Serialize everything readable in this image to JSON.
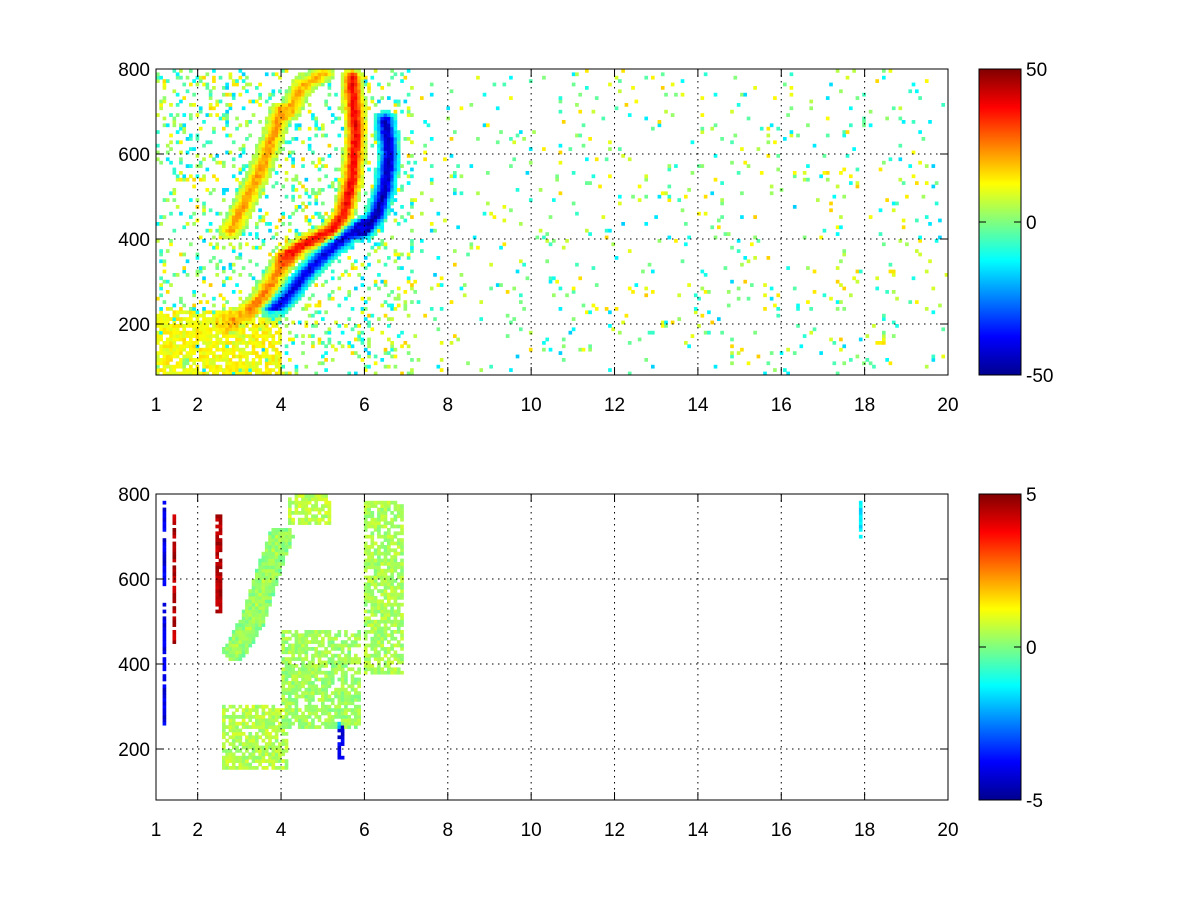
{
  "figure": {
    "background": "#ffffff"
  },
  "chart_data": [
    {
      "type": "heatmap",
      "title": "",
      "xlabel": "",
      "ylabel": "",
      "xlim": [
        1,
        20
      ],
      "ylim": [
        80,
        800
      ],
      "x_ticks": [
        "1",
        "2",
        "4",
        "6",
        "8",
        "10",
        "12",
        "14",
        "16",
        "18",
        "20"
      ],
      "x_tick_values": [
        1,
        2,
        4,
        6,
        8,
        10,
        12,
        14,
        16,
        18,
        20
      ],
      "y_ticks": [
        "200",
        "400",
        "600",
        "800"
      ],
      "y_tick_values": [
        200,
        400,
        600,
        800
      ],
      "grid": true,
      "colormap": "jet",
      "colorbar": {
        "range": [
          -50,
          50
        ],
        "ticks": [
          "50",
          "0",
          "-50"
        ],
        "tick_values": [
          50,
          0,
          -50
        ]
      },
      "features": [
        {
          "kind": "ridge",
          "value": 25,
          "points": [
            [
              2.7,
              200
            ],
            [
              3.2,
              230
            ],
            [
              3.6,
              270
            ],
            [
              3.9,
              320
            ],
            [
              4.1,
              355
            ]
          ]
        },
        {
          "kind": "ridge",
          "value": 38,
          "points": [
            [
              4.1,
              355
            ],
            [
              4.4,
              380
            ],
            [
              4.8,
              400
            ],
            [
              5.2,
              420
            ],
            [
              5.5,
              460
            ],
            [
              5.7,
              540
            ],
            [
              5.8,
              650
            ],
            [
              5.7,
              780
            ]
          ]
        },
        {
          "kind": "ridge",
          "value": 22,
          "points": [
            [
              2.8,
              420
            ],
            [
              3.1,
              480
            ],
            [
              3.4,
              540
            ],
            [
              3.7,
              610
            ],
            [
              4.0,
              700
            ]
          ]
        },
        {
          "kind": "ridge",
          "value": 20,
          "points": [
            [
              4.2,
              700
            ],
            [
              4.5,
              760
            ],
            [
              5.0,
              790
            ]
          ]
        },
        {
          "kind": "trough",
          "value": -40,
          "points": [
            [
              3.8,
              230
            ],
            [
              4.2,
              270
            ],
            [
              4.6,
              320
            ],
            [
              5.0,
              360
            ],
            [
              5.5,
              400
            ],
            [
              5.9,
              430
            ]
          ]
        },
        {
          "kind": "trough",
          "value": -45,
          "points": [
            [
              6.0,
              420
            ],
            [
              6.3,
              460
            ],
            [
              6.5,
              520
            ],
            [
              6.6,
              600
            ],
            [
              6.5,
              680
            ]
          ]
        },
        {
          "kind": "band",
          "value": 12,
          "x0": 1.0,
          "x1": 4.0,
          "y0": 80,
          "y1": 230
        }
      ]
    },
    {
      "type": "heatmap",
      "title": "",
      "xlabel": "",
      "ylabel": "",
      "xlim": [
        1,
        20
      ],
      "ylim": [
        80,
        800
      ],
      "x_ticks": [
        "1",
        "2",
        "4",
        "6",
        "8",
        "10",
        "12",
        "14",
        "16",
        "18",
        "20"
      ],
      "x_tick_values": [
        1,
        2,
        4,
        6,
        8,
        10,
        12,
        14,
        16,
        18,
        20
      ],
      "y_ticks": [
        "200",
        "400",
        "600",
        "800"
      ],
      "y_tick_values": [
        200,
        400,
        600,
        800
      ],
      "grid": true,
      "colormap": "jet",
      "colorbar": {
        "range": [
          -5,
          5
        ],
        "ticks": [
          "5",
          "0",
          "-5"
        ],
        "tick_values": [
          5,
          0,
          -5
        ]
      },
      "features": [
        {
          "kind": "band",
          "value": 0.5,
          "x0": 2.6,
          "x1": 4.2,
          "y0": 150,
          "y1": 300
        },
        {
          "kind": "band",
          "value": 0.3,
          "x0": 4.0,
          "x1": 5.9,
          "y0": 250,
          "y1": 480
        },
        {
          "kind": "band",
          "value": 0.4,
          "x0": 6.0,
          "x1": 6.9,
          "y0": 380,
          "y1": 780
        },
        {
          "kind": "band",
          "value": 0.6,
          "x0": 4.2,
          "x1": 5.2,
          "y0": 730,
          "y1": 800
        },
        {
          "kind": "ridge",
          "value": 0.4,
          "points": [
            [
              2.9,
              430
            ],
            [
              3.3,
              500
            ],
            [
              3.7,
              620
            ],
            [
              4.0,
              700
            ]
          ]
        },
        {
          "kind": "streak",
          "value": -4,
          "x": 1.2,
          "y0": 260,
          "y1": 780
        },
        {
          "kind": "streak",
          "value": 4.5,
          "x": 1.45,
          "y0": 450,
          "y1": 750
        },
        {
          "kind": "streak",
          "value": 4.5,
          "x": 2.5,
          "y0": 520,
          "y1": 760
        },
        {
          "kind": "streak",
          "value": -4,
          "x": 5.45,
          "y0": 180,
          "y1": 260
        },
        {
          "kind": "streak",
          "value": -1.5,
          "x": 17.9,
          "y0": 700,
          "y1": 790
        }
      ]
    }
  ]
}
